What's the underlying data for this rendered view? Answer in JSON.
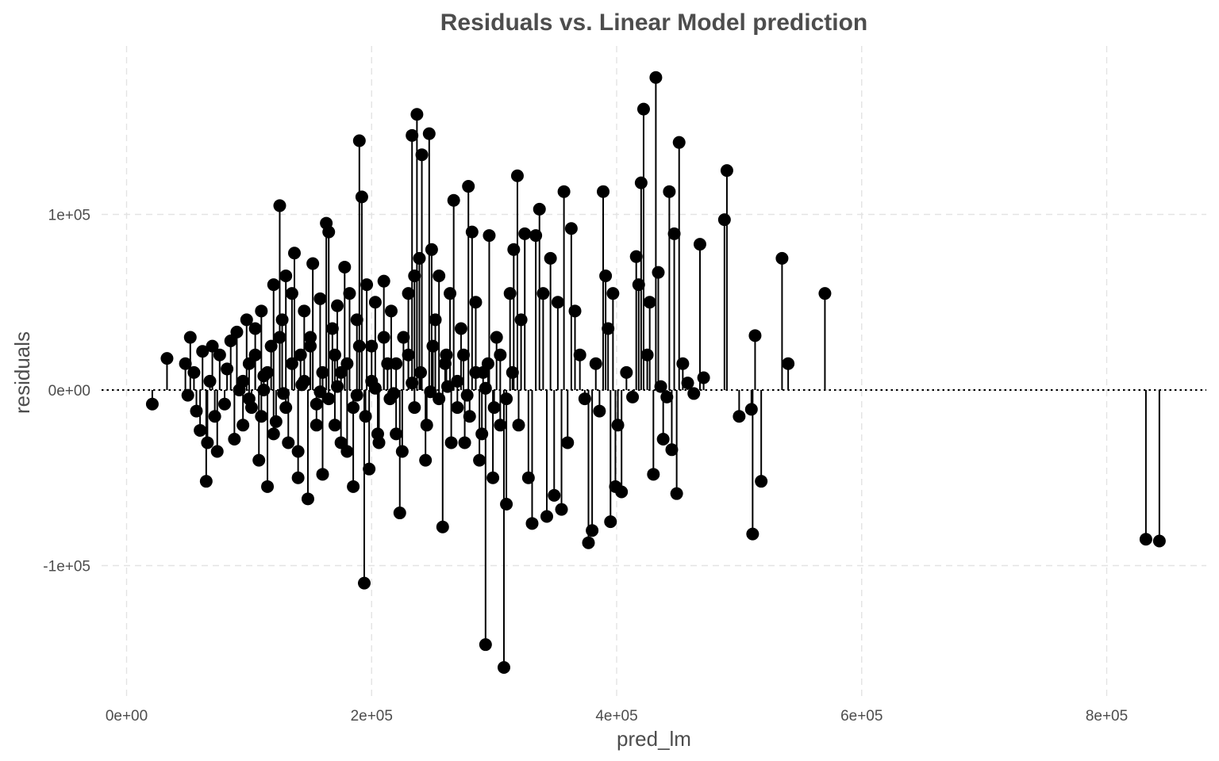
{
  "chart_data": {
    "type": "scatter",
    "title": "Residuals vs. Linear Model prediction",
    "xlabel": "pred_lm",
    "ylabel": "residuals",
    "xlim": [
      -15000,
      880000
    ],
    "ylim": [
      -170000,
      195000
    ],
    "x_ticks": [
      {
        "value": 0,
        "label": "0e+00"
      },
      {
        "value": 200000,
        "label": "2e+05"
      },
      {
        "value": 400000,
        "label": "4e+05"
      },
      {
        "value": 600000,
        "label": "6e+05"
      },
      {
        "value": 800000,
        "label": "8e+05"
      }
    ],
    "y_ticks": [
      {
        "value": -100000,
        "label": "-1e+05"
      },
      {
        "value": 0,
        "label": "0e+00"
      },
      {
        "value": 100000,
        "label": "1e+05"
      }
    ],
    "reference_line": {
      "y": 0,
      "style": "dotted"
    },
    "grid": true,
    "legend": "none",
    "marker_color": "#000000",
    "series": [
      {
        "points": [
          [
            21000,
            -8000
          ],
          [
            33000,
            18000
          ],
          [
            48000,
            15000
          ],
          [
            50000,
            -3000
          ],
          [
            52000,
            30000
          ],
          [
            55000,
            10000
          ],
          [
            57000,
            -12000
          ],
          [
            60000,
            -23000
          ],
          [
            62000,
            22000
          ],
          [
            65000,
            -52000
          ],
          [
            66000,
            -30000
          ],
          [
            68000,
            5000
          ],
          [
            70000,
            25000
          ],
          [
            72000,
            -15000
          ],
          [
            74000,
            -35000
          ],
          [
            76000,
            20000
          ],
          [
            80000,
            -8000
          ],
          [
            82000,
            12000
          ],
          [
            85000,
            28000
          ],
          [
            88000,
            -28000
          ],
          [
            90000,
            33000
          ],
          [
            92000,
            0
          ],
          [
            95000,
            -20000
          ],
          [
            98000,
            40000
          ],
          [
            100000,
            15000
          ],
          [
            102000,
            -10000
          ],
          [
            105000,
            35000
          ],
          [
            108000,
            -40000
          ],
          [
            110000,
            45000
          ],
          [
            112000,
            8000
          ],
          [
            115000,
            -55000
          ],
          [
            118000,
            25000
          ],
          [
            120000,
            60000
          ],
          [
            122000,
            -18000
          ],
          [
            125000,
            105000
          ],
          [
            127000,
            40000
          ],
          [
            130000,
            65000
          ],
          [
            132000,
            -30000
          ],
          [
            135000,
            55000
          ],
          [
            137000,
            78000
          ],
          [
            140000,
            -50000
          ],
          [
            142000,
            20000
          ],
          [
            145000,
            45000
          ],
          [
            148000,
            -62000
          ],
          [
            150000,
            30000
          ],
          [
            152000,
            72000
          ],
          [
            155000,
            -8000
          ],
          [
            158000,
            52000
          ],
          [
            160000,
            -48000
          ],
          [
            163000,
            95000
          ],
          [
            165000,
            90000
          ],
          [
            168000,
            35000
          ],
          [
            170000,
            -20000
          ],
          [
            172000,
            48000
          ],
          [
            175000,
            10000
          ],
          [
            178000,
            70000
          ],
          [
            180000,
            -35000
          ],
          [
            182000,
            55000
          ],
          [
            185000,
            -55000
          ],
          [
            188000,
            40000
          ],
          [
            190000,
            142000
          ],
          [
            192000,
            110000
          ],
          [
            194000,
            -110000
          ],
          [
            196000,
            60000
          ],
          [
            198000,
            -45000
          ],
          [
            200000,
            25000
          ],
          [
            203000,
            50000
          ],
          [
            206000,
            -30000
          ],
          [
            210000,
            62000
          ],
          [
            213000,
            15000
          ],
          [
            216000,
            45000
          ],
          [
            220000,
            -25000
          ],
          [
            223000,
            -70000
          ],
          [
            226000,
            30000
          ],
          [
            230000,
            55000
          ],
          [
            233000,
            145000
          ],
          [
            235000,
            65000
          ],
          [
            237000,
            157000
          ],
          [
            239000,
            75000
          ],
          [
            241000,
            134000
          ],
          [
            244000,
            -40000
          ],
          [
            247000,
            146000
          ],
          [
            249000,
            80000
          ],
          [
            252000,
            40000
          ],
          [
            255000,
            65000
          ],
          [
            258000,
            -78000
          ],
          [
            261000,
            20000
          ],
          [
            264000,
            55000
          ],
          [
            267000,
            108000
          ],
          [
            270000,
            -10000
          ],
          [
            273000,
            35000
          ],
          [
            276000,
            -30000
          ],
          [
            279000,
            116000
          ],
          [
            282000,
            90000
          ],
          [
            285000,
            50000
          ],
          [
            288000,
            -40000
          ],
          [
            291000,
            10000
          ],
          [
            293000,
            -145000
          ],
          [
            296000,
            88000
          ],
          [
            299000,
            -50000
          ],
          [
            302000,
            30000
          ],
          [
            305000,
            -20000
          ],
          [
            308000,
            -158000
          ],
          [
            310000,
            -65000
          ],
          [
            313000,
            55000
          ],
          [
            316000,
            80000
          ],
          [
            319000,
            122000
          ],
          [
            322000,
            40000
          ],
          [
            325000,
            89000
          ],
          [
            328000,
            -50000
          ],
          [
            331000,
            -76000
          ],
          [
            334000,
            88000
          ],
          [
            337000,
            103000
          ],
          [
            340000,
            55000
          ],
          [
            343000,
            -72000
          ],
          [
            346000,
            75000
          ],
          [
            349000,
            -60000
          ],
          [
            352000,
            50000
          ],
          [
            355000,
            -68000
          ],
          [
            357000,
            113000
          ],
          [
            360000,
            -30000
          ],
          [
            363000,
            92000
          ],
          [
            366000,
            45000
          ],
          [
            370000,
            20000
          ],
          [
            374000,
            -5000
          ],
          [
            377000,
            -87000
          ],
          [
            380000,
            -80000
          ],
          [
            383000,
            15000
          ],
          [
            386000,
            -12000
          ],
          [
            389000,
            113000
          ],
          [
            391000,
            65000
          ],
          [
            393000,
            35000
          ],
          [
            395000,
            -75000
          ],
          [
            397000,
            55000
          ],
          [
            399000,
            -55000
          ],
          [
            401000,
            -20000
          ],
          [
            404000,
            -58000
          ],
          [
            408000,
            10000
          ],
          [
            413000,
            -4000
          ],
          [
            416000,
            76000
          ],
          [
            418000,
            60000
          ],
          [
            420000,
            118000
          ],
          [
            422000,
            160000
          ],
          [
            425000,
            20000
          ],
          [
            427000,
            50000
          ],
          [
            430000,
            -48000
          ],
          [
            432000,
            178000
          ],
          [
            434000,
            67000
          ],
          [
            436000,
            2000
          ],
          [
            438000,
            -28000
          ],
          [
            441000,
            -4000
          ],
          [
            443000,
            113000
          ],
          [
            445000,
            -34000
          ],
          [
            447000,
            89000
          ],
          [
            449000,
            -59000
          ],
          [
            451000,
            141000
          ],
          [
            454000,
            15000
          ],
          [
            458000,
            4000
          ],
          [
            463000,
            -2000
          ],
          [
            468000,
            83000
          ],
          [
            471000,
            7000
          ],
          [
            488000,
            97000
          ],
          [
            490000,
            125000
          ],
          [
            500000,
            -15000
          ],
          [
            510000,
            -11000
          ],
          [
            511000,
            -82000
          ],
          [
            513000,
            31000
          ],
          [
            518000,
            -52000
          ],
          [
            535000,
            75000
          ],
          [
            540000,
            15000
          ],
          [
            570000,
            55000
          ],
          [
            832000,
            -85000
          ],
          [
            843000,
            -86000
          ]
        ]
      },
      {
        "points": [
          [
            95000,
            5000
          ],
          [
            100000,
            -5000
          ],
          [
            105000,
            20000
          ],
          [
            110000,
            -15000
          ],
          [
            115000,
            10000
          ],
          [
            120000,
            -25000
          ],
          [
            125000,
            30000
          ],
          [
            130000,
            -10000
          ],
          [
            135000,
            15000
          ],
          [
            140000,
            -35000
          ],
          [
            145000,
            5000
          ],
          [
            150000,
            25000
          ],
          [
            155000,
            -20000
          ],
          [
            160000,
            10000
          ],
          [
            165000,
            -5000
          ],
          [
            170000,
            20000
          ],
          [
            175000,
            -30000
          ],
          [
            180000,
            15000
          ],
          [
            185000,
            -10000
          ],
          [
            190000,
            25000
          ],
          [
            195000,
            -15000
          ],
          [
            200000,
            5000
          ],
          [
            205000,
            -25000
          ],
          [
            210000,
            30000
          ],
          [
            215000,
            -5000
          ],
          [
            220000,
            15000
          ],
          [
            225000,
            -35000
          ],
          [
            230000,
            20000
          ],
          [
            235000,
            -10000
          ],
          [
            240000,
            10000
          ],
          [
            245000,
            -20000
          ],
          [
            250000,
            25000
          ],
          [
            255000,
            -5000
          ],
          [
            260000,
            15000
          ],
          [
            265000,
            -30000
          ],
          [
            270000,
            5000
          ],
          [
            275000,
            20000
          ],
          [
            280000,
            -15000
          ],
          [
            285000,
            10000
          ],
          [
            290000,
            -25000
          ],
          [
            295000,
            15000
          ],
          [
            300000,
            -10000
          ],
          [
            305000,
            20000
          ],
          [
            310000,
            -5000
          ],
          [
            315000,
            10000
          ],
          [
            320000,
            -20000
          ],
          [
            112000,
            0
          ],
          [
            128000,
            -2000
          ],
          [
            143000,
            3000
          ],
          [
            158000,
            -1000
          ],
          [
            172000,
            2000
          ],
          [
            188000,
            -3000
          ],
          [
            203000,
            1000
          ],
          [
            218000,
            -2000
          ],
          [
            233000,
            4000
          ],
          [
            248000,
            -1000
          ],
          [
            262000,
            2000
          ],
          [
            278000,
            -3000
          ],
          [
            293000,
            1000
          ]
        ]
      }
    ]
  }
}
